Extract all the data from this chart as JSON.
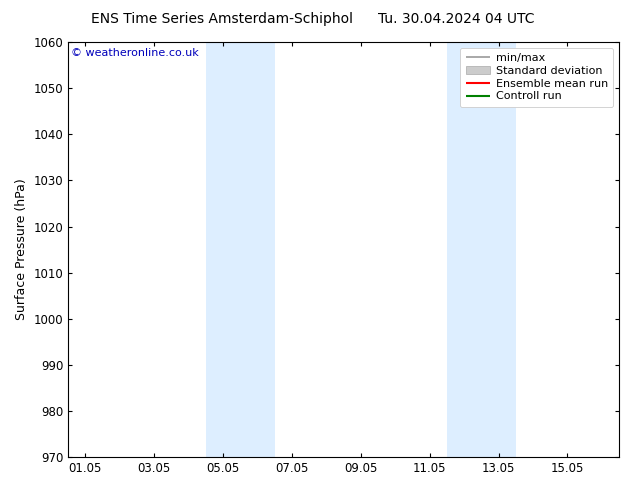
{
  "title": "ENS Time Series Amsterdam-Schiphol",
  "title_right": "Tu. 30.04.2024 04 UTC",
  "ylabel": "Surface Pressure (hPa)",
  "watermark": "© weatheronline.co.uk",
  "ylim": [
    970,
    1060
  ],
  "yticks": [
    970,
    980,
    990,
    1000,
    1010,
    1020,
    1030,
    1040,
    1050,
    1060
  ],
  "xtick_labels": [
    "01.05",
    "03.05",
    "05.05",
    "07.05",
    "09.05",
    "11.05",
    "13.05",
    "15.05"
  ],
  "xtick_positions": [
    0,
    2,
    4,
    6,
    8,
    10,
    12,
    14
  ],
  "xlim": [
    -0.5,
    15.5
  ],
  "shaded_bands": [
    {
      "x_start": 3.5,
      "x_end": 5.5
    },
    {
      "x_start": 10.5,
      "x_end": 12.5
    }
  ],
  "shade_color": "#ddeeff",
  "background_color": "#ffffff",
  "legend_entries": [
    {
      "label": "min/max",
      "color": "#999999",
      "lw": 1.2,
      "type": "line"
    },
    {
      "label": "Standard deviation",
      "color": "#cccccc",
      "lw": 8,
      "type": "patch"
    },
    {
      "label": "Ensemble mean run",
      "color": "#ff0000",
      "lw": 1.5,
      "type": "line"
    },
    {
      "label": "Controll run",
      "color": "#008000",
      "lw": 1.5,
      "type": "line"
    }
  ],
  "watermark_color": "#0000bb",
  "title_fontsize": 10,
  "axis_label_fontsize": 9,
  "tick_fontsize": 8.5,
  "legend_fontsize": 8
}
